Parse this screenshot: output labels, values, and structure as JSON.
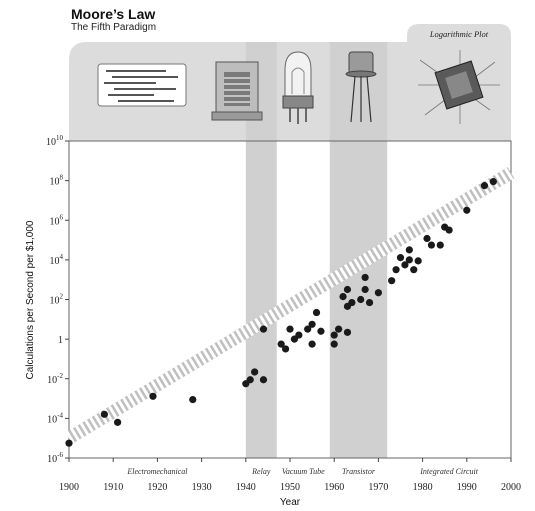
{
  "chart_data": {
    "type": "scatter",
    "title": "Moore’s Law",
    "subtitle": "The Fifth Paradigm",
    "xlabel": "Year",
    "ylabel": "Calculations per Second per $1,000",
    "scale_label": "Logarithmic Plot",
    "y_scale": "log",
    "xlim": [
      1900,
      2000
    ],
    "ylim_exponent": [
      -6,
      10
    ],
    "x_ticks": [
      "1900",
      "1910",
      "1920",
      "1930",
      "1940",
      "1950",
      "1960",
      "1970",
      "1980",
      "1990",
      "2000"
    ],
    "y_ticks": [
      {
        "base": "10",
        "exp": "-6",
        "exponent": -6
      },
      {
        "base": "10",
        "exp": "-4",
        "exponent": -4
      },
      {
        "base": "10",
        "exp": "-2",
        "exponent": -2
      },
      {
        "base": "1",
        "exp": "",
        "exponent": 0
      },
      {
        "base": "10",
        "exp": "2",
        "exponent": 2
      },
      {
        "base": "10",
        "exp": "4",
        "exponent": 4
      },
      {
        "base": "10",
        "exp": "6",
        "exponent": 6
      },
      {
        "base": "10",
        "exp": "8",
        "exponent": 8
      },
      {
        "base": "10",
        "exp": "10",
        "exponent": 10
      }
    ],
    "paradigms": [
      {
        "label": "Electromechanical",
        "start": 1900,
        "end": 1940,
        "shaded": false,
        "icon": "punched-card-icon"
      },
      {
        "label": "Relay",
        "start": 1940,
        "end": 1947,
        "shaded": true,
        "icon": "relay-icon"
      },
      {
        "label": "Vacuum Tube",
        "start": 1947,
        "end": 1959,
        "shaded": false,
        "icon": "vacuum-tube-icon"
      },
      {
        "label": "Transistor",
        "start": 1959,
        "end": 1972,
        "shaded": true,
        "icon": "transistor-icon"
      },
      {
        "label": "Integrated Circuit",
        "start": 1972,
        "end": 2000,
        "shaded": false,
        "icon": "integrated-circuit-icon"
      }
    ],
    "trend": {
      "x": [
        1900,
        2000
      ],
      "y_exponent": [
        -5.0,
        8.4
      ]
    },
    "grid": false,
    "colors": {
      "points": "#1a1a1a",
      "band": "#d0d0d0",
      "header": "#dcdcdc",
      "trend": "#ffffff"
    },
    "points": [
      {
        "x": 1900,
        "y": 5.6e-06
      },
      {
        "x": 1908,
        "y": 0.00016
      },
      {
        "x": 1911,
        "y": 6.3e-05
      },
      {
        "x": 1919,
        "y": 0.0013
      },
      {
        "x": 1928,
        "y": 0.00089
      },
      {
        "x": 1940,
        "y": 0.0056
      },
      {
        "x": 1941,
        "y": 0.0089
      },
      {
        "x": 1942,
        "y": 0.022
      },
      {
        "x": 1944,
        "y": 0.0089
      },
      {
        "x": 1944,
        "y": 3.2
      },
      {
        "x": 1948,
        "y": 0.56
      },
      {
        "x": 1949,
        "y": 0.32
      },
      {
        "x": 1950,
        "y": 3.2
      },
      {
        "x": 1951,
        "y": 1.0
      },
      {
        "x": 1952,
        "y": 1.6
      },
      {
        "x": 1954,
        "y": 3.2
      },
      {
        "x": 1955,
        "y": 5.6
      },
      {
        "x": 1955,
        "y": 0.56
      },
      {
        "x": 1956,
        "y": 22
      },
      {
        "x": 1957,
        "y": 2.5
      },
      {
        "x": 1960,
        "y": 0.56
      },
      {
        "x": 1960,
        "y": 1.6
      },
      {
        "x": 1961,
        "y": 3.2
      },
      {
        "x": 1962,
        "y": 140
      },
      {
        "x": 1963,
        "y": 2.2
      },
      {
        "x": 1963,
        "y": 320
      },
      {
        "x": 1963,
        "y": 45
      },
      {
        "x": 1964,
        "y": 70
      },
      {
        "x": 1966,
        "y": 100
      },
      {
        "x": 1967,
        "y": 320
      },
      {
        "x": 1967,
        "y": 1300
      },
      {
        "x": 1968,
        "y": 70
      },
      {
        "x": 1970,
        "y": 220
      },
      {
        "x": 1973,
        "y": 890
      },
      {
        "x": 1974,
        "y": 3200
      },
      {
        "x": 1975,
        "y": 13000
      },
      {
        "x": 1976,
        "y": 5600
      },
      {
        "x": 1977,
        "y": 32000
      },
      {
        "x": 1977,
        "y": 10000
      },
      {
        "x": 1978,
        "y": 3200
      },
      {
        "x": 1979,
        "y": 8900
      },
      {
        "x": 1981,
        "y": 120000
      },
      {
        "x": 1982,
        "y": 56000
      },
      {
        "x": 1984,
        "y": 56000
      },
      {
        "x": 1985,
        "y": 450000
      },
      {
        "x": 1986,
        "y": 320000
      },
      {
        "x": 1990,
        "y": 3200000
      },
      {
        "x": 1994,
        "y": 56000000
      },
      {
        "x": 1996,
        "y": 89000000
      }
    ]
  }
}
